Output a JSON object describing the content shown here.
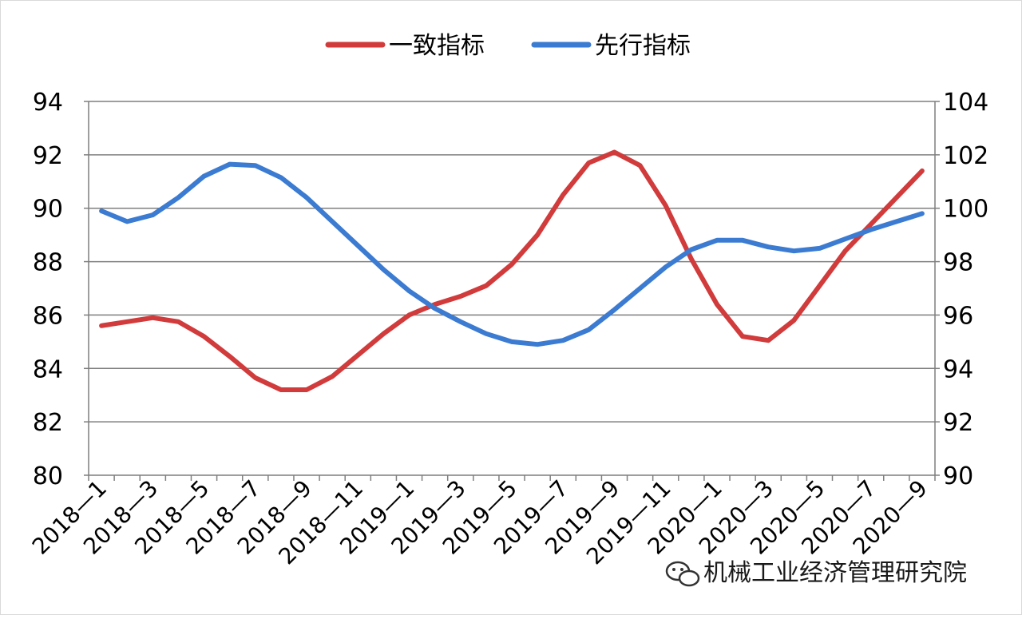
{
  "legend": {
    "consistent_label": "一致指标",
    "leading_label": "先行指标"
  },
  "watermark": {
    "text": "机械工业经济管理研究院"
  },
  "colors": {
    "consistent": "#d13b3b",
    "leading": "#3b7bd1",
    "grid": "#7f7f7f",
    "axis": "#7f7f7f"
  },
  "chart_data": {
    "type": "line",
    "categories": [
      "2018—1",
      "2018—2",
      "2018—3",
      "2018—4",
      "2018—5",
      "2018—6",
      "2018—7",
      "2018—8",
      "2018—9",
      "2018—10",
      "2018—11",
      "2018—12",
      "2019—1",
      "2019—2",
      "2019—3",
      "2019—4",
      "2019—5",
      "2019—6",
      "2019—7",
      "2019—8",
      "2019—9",
      "2019—10",
      "2019—11",
      "2019—12",
      "2020—1",
      "2020—2",
      "2020—3",
      "2020—4",
      "2020—5",
      "2020—6",
      "2020—7",
      "2020—8",
      "2020—9"
    ],
    "x_tick_labels": [
      "2018—1",
      "2018—3",
      "2018—5",
      "2018—7",
      "2018—9",
      "2018—11",
      "2019—1",
      "2019—3",
      "2019—5",
      "2019—7",
      "2019—9",
      "2019—11",
      "2020—1",
      "2020—3",
      "2020—5",
      "2020—7",
      "2020—9"
    ],
    "y_left": {
      "min": 80,
      "max": 94,
      "step": 2
    },
    "y_right": {
      "min": 90,
      "max": 104,
      "step": 2
    },
    "series": [
      {
        "name": "一致指标",
        "axis": "left",
        "values": [
          85.6,
          85.75,
          85.9,
          85.75,
          85.2,
          84.45,
          83.65,
          83.2,
          83.2,
          83.7,
          84.5,
          85.3,
          86.0,
          86.4,
          86.7,
          87.1,
          87.9,
          89.0,
          90.5,
          91.7,
          92.1,
          91.6,
          90.1,
          88.1,
          86.4,
          85.2,
          85.05,
          85.8,
          87.1,
          88.4,
          89.4,
          90.4,
          91.4
        ]
      },
      {
        "name": "先行指标",
        "axis": "right",
        "values": [
          99.9,
          99.5,
          99.75,
          100.4,
          101.2,
          101.65,
          101.6,
          101.15,
          100.4,
          99.5,
          98.6,
          97.7,
          96.9,
          96.25,
          95.75,
          95.3,
          95.0,
          94.9,
          95.05,
          95.45,
          96.2,
          97.0,
          97.8,
          98.45,
          98.8,
          98.8,
          98.55,
          98.4,
          98.5,
          98.85,
          99.2,
          99.5,
          99.8
        ]
      }
    ],
    "grid": true,
    "legend_position": "top"
  }
}
